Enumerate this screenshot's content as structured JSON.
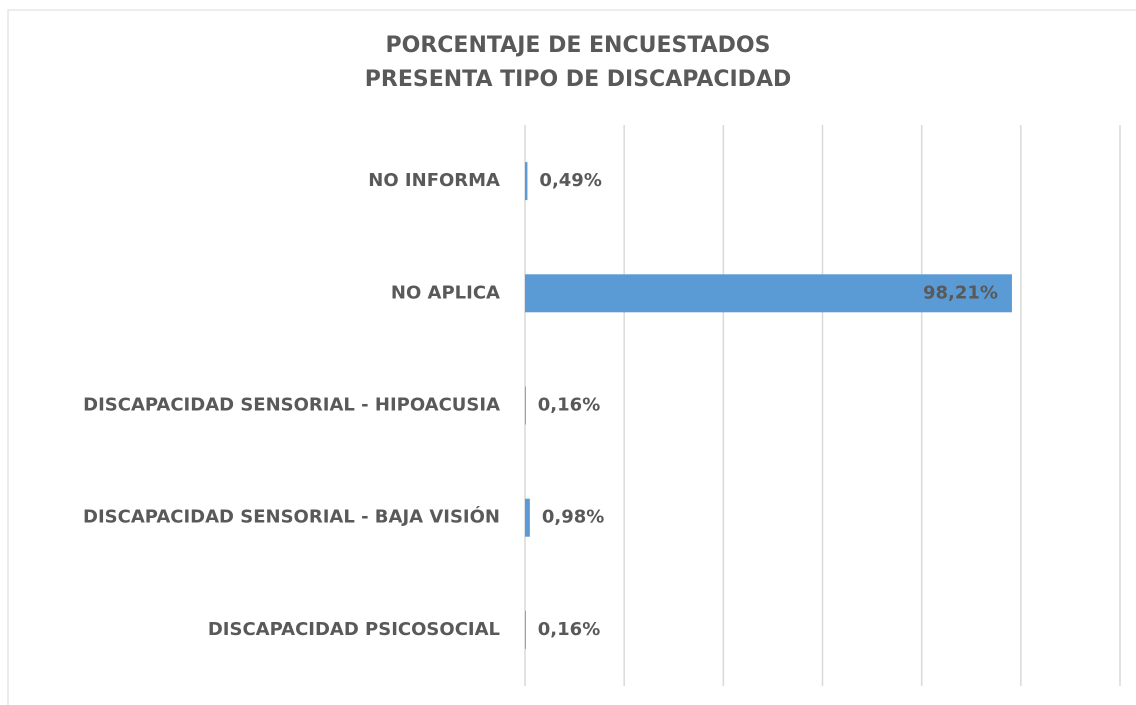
{
  "chart_data": {
    "type": "barh",
    "title": [
      "PORCENTAJE DE ENCUESTADOS",
      "PRESENTA TIPO DE DISCAPACIDAD"
    ],
    "categories": [
      "NO INFORMA",
      "NO APLICA",
      "DISCAPACIDAD SENSORIAL - HIPOACUSIA",
      "DISCAPACIDAD SENSORIAL - BAJA VISIÓN",
      "DISCAPACIDAD PSICOSOCIAL"
    ],
    "values": [
      0.49,
      98.21,
      0.16,
      0.98,
      0.16
    ],
    "value_labels": [
      "0,49%",
      "98,21%",
      "0,16%",
      "0,98%",
      "0,16%"
    ],
    "color": "#5b9bd5",
    "xlim": [
      0,
      120
    ],
    "xticks": [
      0,
      20,
      40,
      60,
      80,
      100,
      120
    ],
    "grid": true
  }
}
